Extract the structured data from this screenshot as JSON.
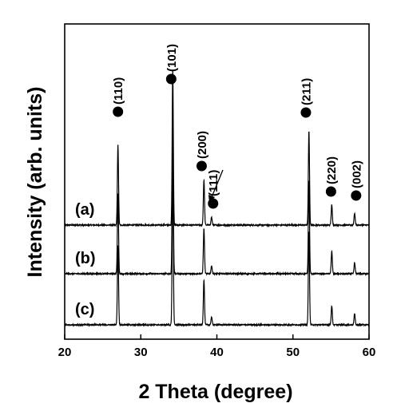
{
  "chart_data": {
    "type": "line",
    "xlabel": "2 Theta (degree)",
    "ylabel": "Intensity (arb. units)",
    "xlim": [
      20,
      60
    ],
    "xticks": [
      20,
      30,
      40,
      50,
      60
    ],
    "yticks": "none",
    "grid": false,
    "legend": "none",
    "line_color": "#000000",
    "series": [
      {
        "name": "(a)",
        "baseline": 0,
        "peaks": [
          {
            "x": 27.0,
            "h": 100
          },
          {
            "x": 34.2,
            "h": 195
          },
          {
            "x": 38.3,
            "h": 57
          },
          {
            "x": 39.3,
            "h": 10
          },
          {
            "x": 52.1,
            "h": 118
          },
          {
            "x": 55.1,
            "h": 25
          },
          {
            "x": 58.1,
            "h": 15
          }
        ]
      },
      {
        "name": "(b)",
        "baseline": -61,
        "peaks": [
          {
            "x": 27.0,
            "h": 100
          },
          {
            "x": 34.2,
            "h": 195
          },
          {
            "x": 38.3,
            "h": 57
          },
          {
            "x": 39.3,
            "h": 10
          },
          {
            "x": 52.1,
            "h": 118
          },
          {
            "x": 55.1,
            "h": 28
          },
          {
            "x": 58.1,
            "h": 14
          }
        ]
      },
      {
        "name": "(c)",
        "baseline": -125,
        "peaks": [
          {
            "x": 27.0,
            "h": 100
          },
          {
            "x": 34.2,
            "h": 195
          },
          {
            "x": 38.3,
            "h": 57
          },
          {
            "x": 39.3,
            "h": 10
          },
          {
            "x": 52.1,
            "h": 118
          },
          {
            "x": 55.1,
            "h": 24
          },
          {
            "x": 58.1,
            "h": 14
          }
        ]
      }
    ],
    "annotations": [
      {
        "text": "(110)",
        "x": 27.0,
        "y": 142
      },
      {
        "text": "(101)",
        "x": 34.0,
        "y": 183
      },
      {
        "text": "(200)",
        "x": 38.0,
        "y": 74
      },
      {
        "text": "(111)",
        "x": 39.5,
        "y": 27
      },
      {
        "text": "(211)",
        "x": 51.7,
        "y": 141
      },
      {
        "text": "(220)",
        "x": 55.0,
        "y": 42
      },
      {
        "text": "(002)",
        "x": 58.3,
        "y": 37
      }
    ]
  }
}
